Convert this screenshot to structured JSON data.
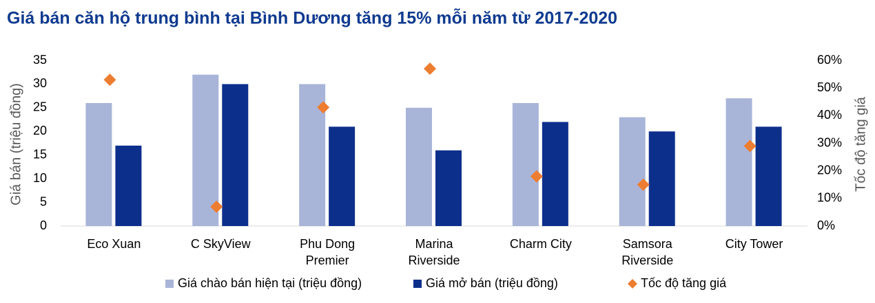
{
  "chart_data": {
    "type": "bar",
    "title": "Giá bán căn hộ trung bình tại Bình Dương tăng 15% mỗi năm từ 2017-2020",
    "y_label": "Giá bán (triệu đồng)",
    "y2_label": "Tốc độ tăng giá",
    "categories": [
      "Eco Xuan",
      "C SkyView",
      "Phu Dong Premier",
      "Marina Riverside",
      "Charm City",
      "Samsora Riverside",
      "City Tower"
    ],
    "series": [
      {
        "name": "Giá chào bán hiện tại (triệu đồng)",
        "type": "bar",
        "color": "#a9b4d9",
        "values": [
          26,
          32,
          30,
          25,
          26,
          23,
          27
        ]
      },
      {
        "name": "Giá mở bán (triệu đồng)",
        "type": "bar",
        "color": "#0d2f8c",
        "values": [
          17,
          30,
          21,
          16,
          22,
          20,
          21
        ]
      },
      {
        "name": "Tốc độ tăng giá",
        "type": "scatter",
        "axis": "y2",
        "color": "#ed7d31",
        "values": [
          53,
          7,
          43,
          57,
          18,
          15,
          29
        ]
      }
    ],
    "ylim": [
      0,
      35
    ],
    "yticks": [
      0,
      5,
      10,
      15,
      20,
      25,
      30,
      35
    ],
    "y2lim": [
      0,
      60
    ],
    "y2ticks": [
      {
        "value": 0,
        "label": "0%"
      },
      {
        "value": 10,
        "label": "10%"
      },
      {
        "value": 20,
        "label": "20%"
      },
      {
        "value": 30,
        "label": "30%"
      },
      {
        "value": 40,
        "label": "40%"
      },
      {
        "value": 50,
        "label": "50%"
      },
      {
        "value": 60,
        "label": "60%"
      }
    ],
    "grid": false
  }
}
